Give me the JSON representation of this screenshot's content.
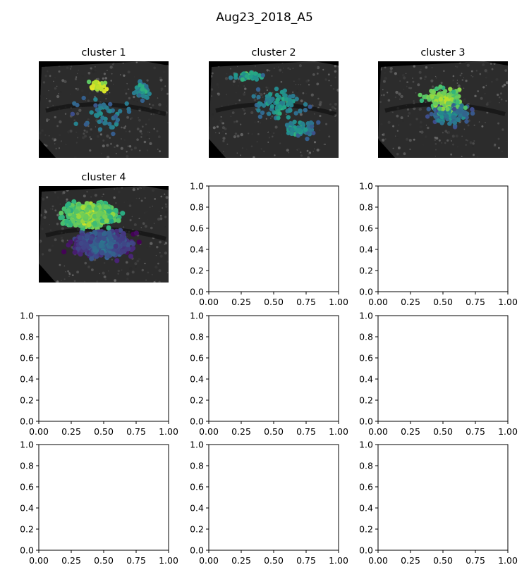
{
  "figure": {
    "title": "Aug23_2018_A5"
  },
  "chart_data": [
    {
      "type": "scatter",
      "title": "cluster 1",
      "background": "grayscale brain image",
      "axes_visible": false,
      "colormap": "viridis",
      "point_count": 140,
      "distribution": "concentrated in upper-center region, highest values (yellow) near top center"
    },
    {
      "type": "scatter",
      "title": "cluster 2",
      "background": "grayscale brain image",
      "axes_visible": false,
      "colormap": "viridis",
      "point_count": 240,
      "distribution": "spread across the whole image, mostly mid values (green/teal)"
    },
    {
      "type": "scatter",
      "title": "cluster 3",
      "background": "grayscale brain image",
      "axes_visible": false,
      "colormap": "viridis",
      "point_count": 260,
      "distribution": "dense in center region, high values (yellow) at center"
    },
    {
      "type": "scatter",
      "title": "cluster 4",
      "background": "grayscale brain image",
      "axes_visible": false,
      "colormap": "viridis",
      "point_count": 1400,
      "distribution": "covers most of the image densely, high values upper-left, low values lower region"
    },
    {
      "type": "empty",
      "title": "",
      "xlim": [
        0,
        1
      ],
      "ylim": [
        0,
        1
      ],
      "xticks": [
        "0.00",
        "0.25",
        "0.50",
        "0.75",
        "1.00"
      ],
      "yticks": [
        "0.0",
        "0.2",
        "0.4",
        "0.6",
        "0.8",
        "1.0"
      ]
    },
    {
      "type": "empty",
      "title": "",
      "xlim": [
        0,
        1
      ],
      "ylim": [
        0,
        1
      ],
      "xticks": [
        "0.00",
        "0.25",
        "0.50",
        "0.75",
        "1.00"
      ],
      "yticks": [
        "0.0",
        "0.2",
        "0.4",
        "0.6",
        "0.8",
        "1.0"
      ]
    },
    {
      "type": "empty",
      "title": "",
      "xlim": [
        0,
        1
      ],
      "ylim": [
        0,
        1
      ],
      "xticks": [
        "0.00",
        "0.25",
        "0.50",
        "0.75",
        "1.00"
      ],
      "yticks": [
        "0.0",
        "0.2",
        "0.4",
        "0.6",
        "0.8",
        "1.0"
      ]
    },
    {
      "type": "empty",
      "title": "",
      "xlim": [
        0,
        1
      ],
      "ylim": [
        0,
        1
      ],
      "xticks": [
        "0.00",
        "0.25",
        "0.50",
        "0.75",
        "1.00"
      ],
      "yticks": [
        "0.0",
        "0.2",
        "0.4",
        "0.6",
        "0.8",
        "1.0"
      ]
    },
    {
      "type": "empty",
      "title": "",
      "xlim": [
        0,
        1
      ],
      "ylim": [
        0,
        1
      ],
      "xticks": [
        "0.00",
        "0.25",
        "0.50",
        "0.75",
        "1.00"
      ],
      "yticks": [
        "0.0",
        "0.2",
        "0.4",
        "0.6",
        "0.8",
        "1.0"
      ]
    },
    {
      "type": "empty",
      "title": "",
      "xlim": [
        0,
        1
      ],
      "ylim": [
        0,
        1
      ],
      "xticks": [
        "0.00",
        "0.25",
        "0.50",
        "0.75",
        "1.00"
      ],
      "yticks": [
        "0.0",
        "0.2",
        "0.4",
        "0.6",
        "0.8",
        "1.0"
      ]
    },
    {
      "type": "empty",
      "title": "",
      "xlim": [
        0,
        1
      ],
      "ylim": [
        0,
        1
      ],
      "xticks": [
        "0.00",
        "0.25",
        "0.50",
        "0.75",
        "1.00"
      ],
      "yticks": [
        "0.0",
        "0.2",
        "0.4",
        "0.6",
        "0.8",
        "1.0"
      ]
    },
    {
      "type": "empty",
      "title": "",
      "xlim": [
        0,
        1
      ],
      "ylim": [
        0,
        1
      ],
      "xticks": [
        "0.00",
        "0.25",
        "0.50",
        "0.75",
        "1.00"
      ],
      "yticks": [
        "0.0",
        "0.2",
        "0.4",
        "0.6",
        "0.8",
        "1.0"
      ]
    }
  ]
}
